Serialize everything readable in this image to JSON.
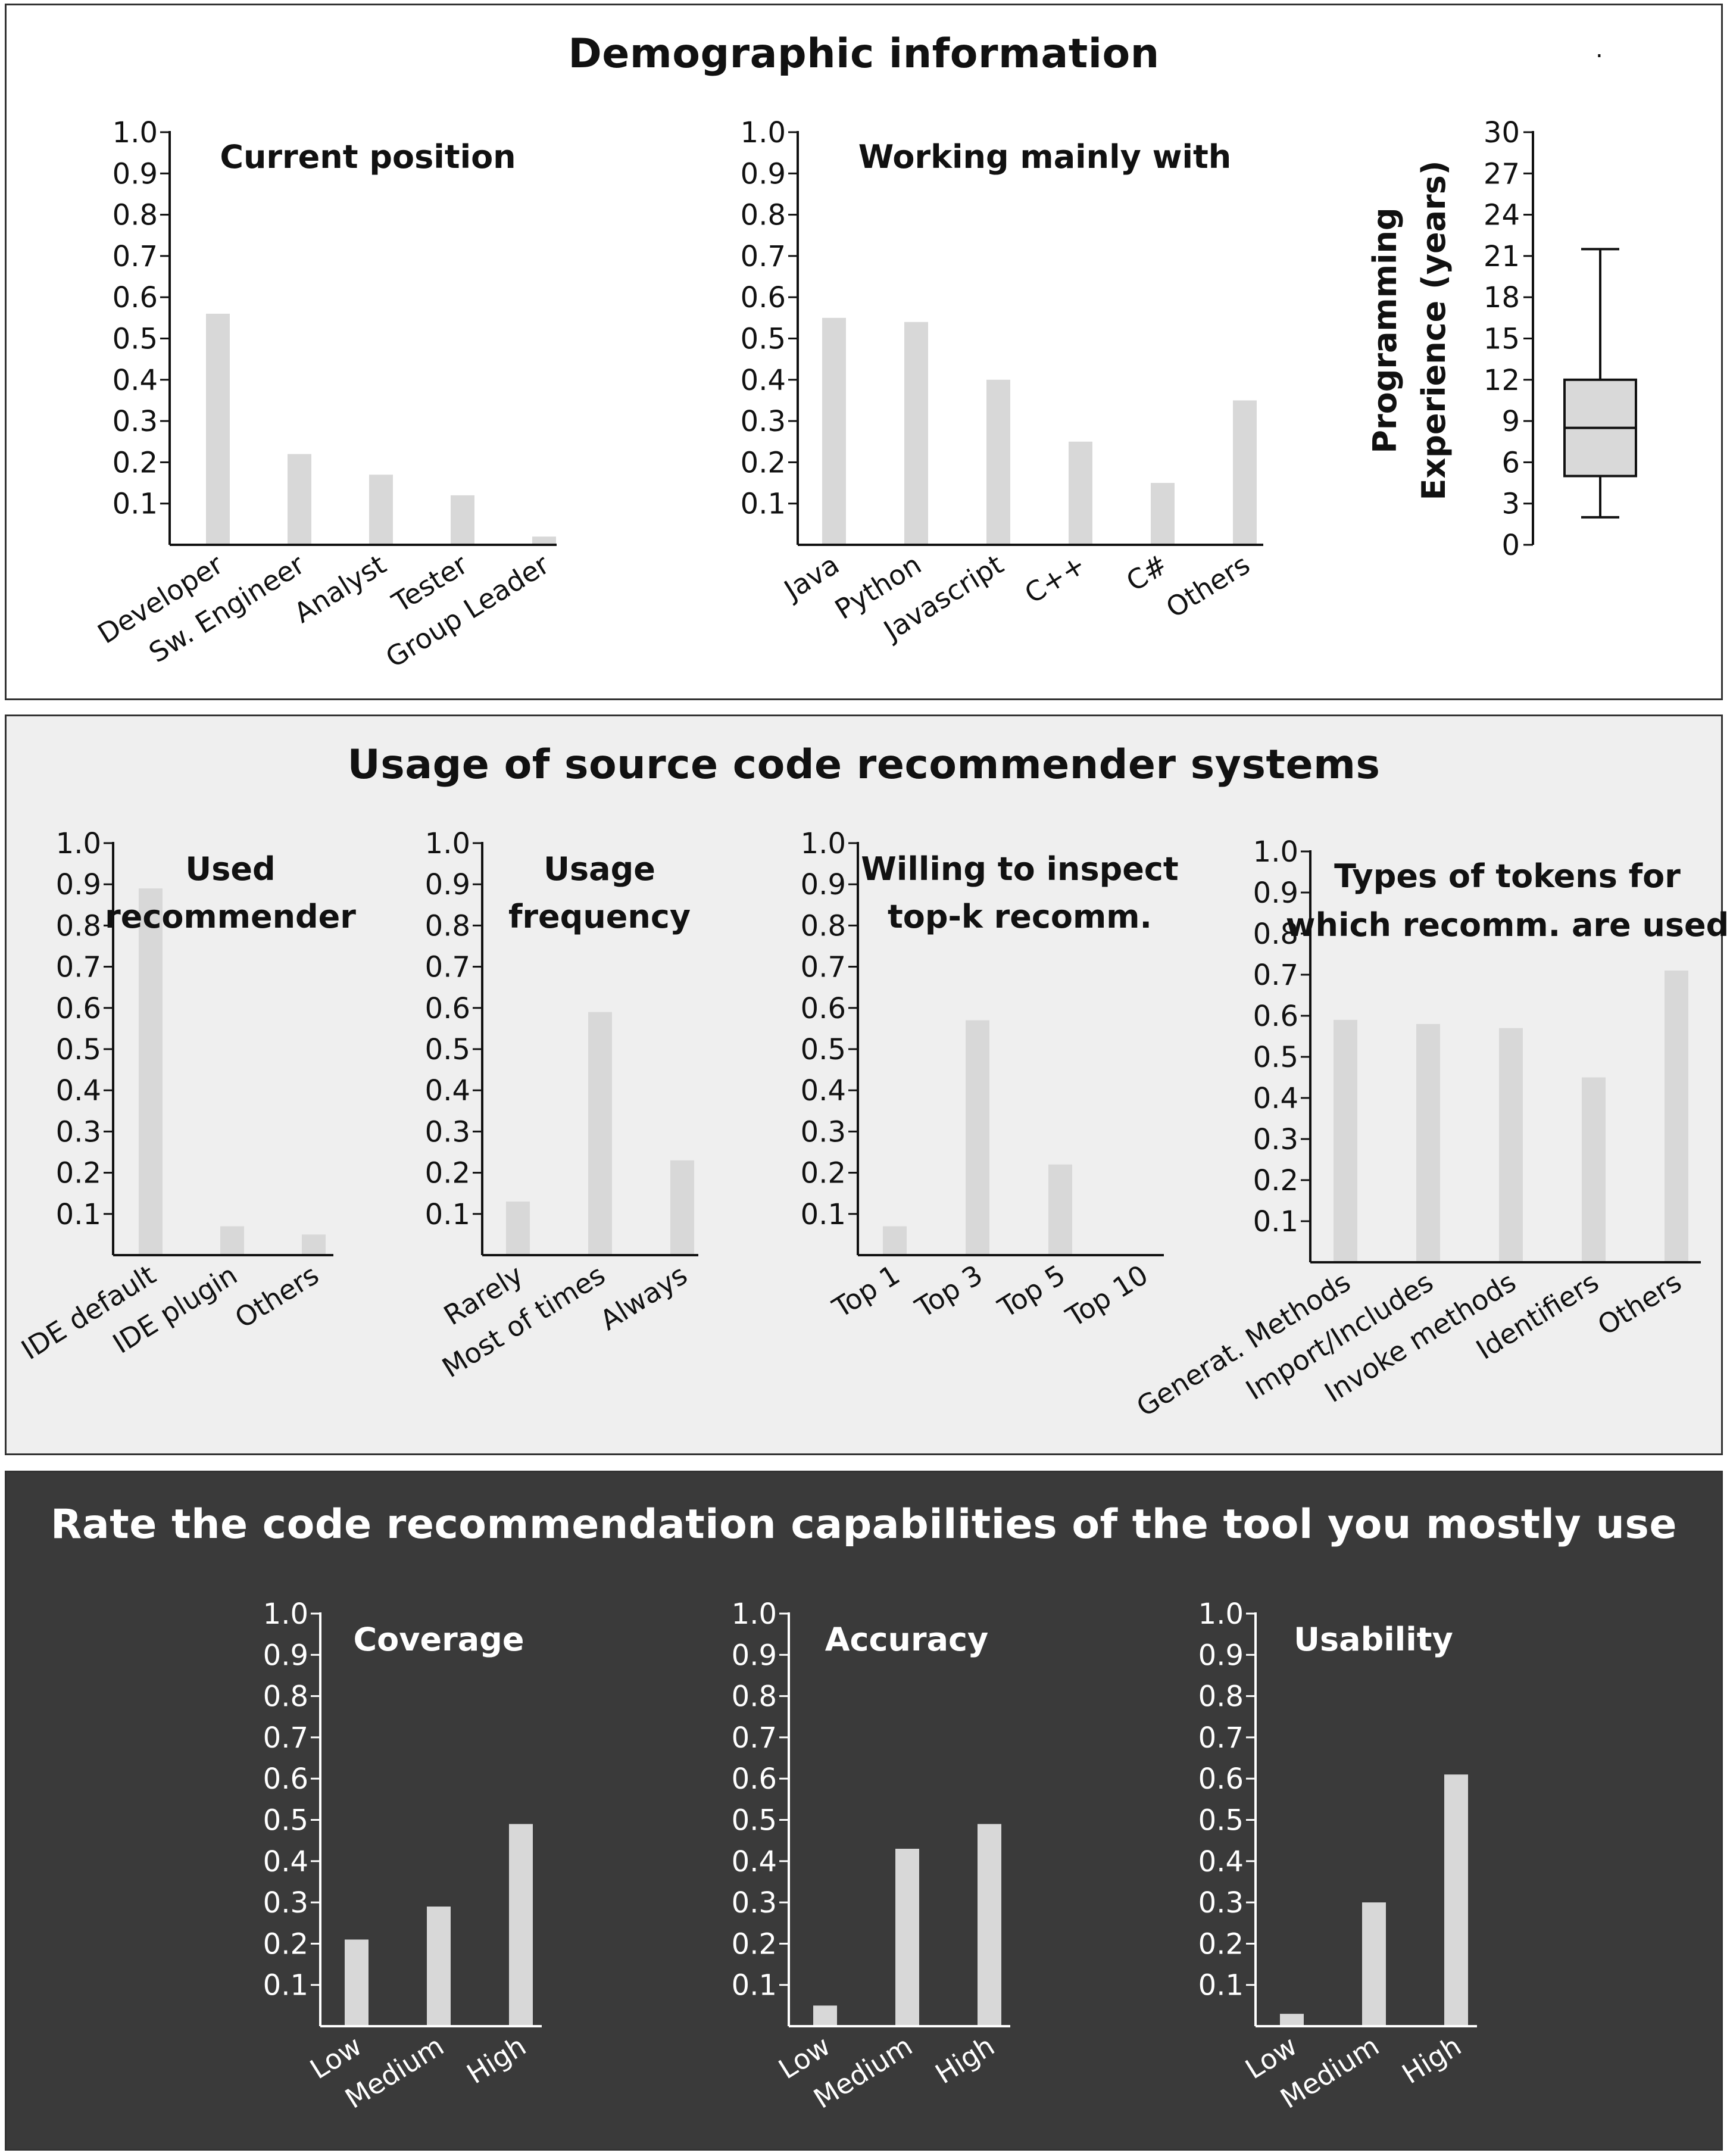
{
  "panels": {
    "demographic": {
      "title": "Demographic information",
      "mark": "."
    },
    "usage": {
      "title": "Usage of source code recommender systems"
    },
    "rating": {
      "title": "Rate the code recommendation capabilities of the tool you mostly use"
    }
  },
  "colors": {
    "bar": "#d8d8d8",
    "dark_bg": "#3a3a3a",
    "light_bg": "#efefef",
    "box_fill": "#d9d9d9"
  },
  "chart_data": [
    {
      "id": "current-position",
      "type": "bar",
      "theme": "light",
      "panel": "demographic",
      "title": [
        "Current position"
      ],
      "categories": [
        "Developer",
        "Sw. Engineer",
        "Analyst",
        "Tester",
        "Group Leader"
      ],
      "values": [
        0.56,
        0.22,
        0.17,
        0.12,
        0.02
      ],
      "ylim": [
        0,
        1.0
      ],
      "yticks": [
        "0.1",
        "0.2",
        "0.3",
        "0.4",
        "0.5",
        "0.6",
        "0.7",
        "0.8",
        "0.9",
        "1.0"
      ]
    },
    {
      "id": "working-mainly-with",
      "type": "bar",
      "theme": "light",
      "panel": "demographic",
      "title": [
        "Working mainly with"
      ],
      "categories": [
        "Java",
        "Python",
        "Javascript",
        "C++",
        "C#",
        "Others"
      ],
      "values": [
        0.55,
        0.54,
        0.4,
        0.25,
        0.15,
        0.35
      ],
      "ylim": [
        0,
        1.0
      ],
      "yticks": [
        "0.1",
        "0.2",
        "0.3",
        "0.4",
        "0.5",
        "0.6",
        "0.7",
        "0.8",
        "0.9",
        "1.0"
      ]
    },
    {
      "id": "programming-experience",
      "type": "box",
      "theme": "light",
      "panel": "demographic",
      "ylabel": [
        "Programming",
        "Experience (years)"
      ],
      "ylim": [
        0,
        30
      ],
      "yticks": [
        "3",
        "6",
        "9",
        "12",
        "15",
        "18",
        "21",
        "24",
        "27",
        "30"
      ],
      "ytick_zero": "0",
      "box": {
        "min": 2,
        "q1": 5,
        "median": 8.5,
        "q3": 12,
        "max": 21.5
      }
    },
    {
      "id": "used-recommender",
      "type": "bar",
      "theme": "light",
      "panel": "usage",
      "title": [
        "Used",
        "recommender"
      ],
      "categories": [
        "IDE default",
        "IDE plugin",
        "Others"
      ],
      "values": [
        0.89,
        0.07,
        0.05
      ],
      "ylim": [
        0,
        1.0
      ],
      "yticks": [
        "0.1",
        "0.2",
        "0.3",
        "0.4",
        "0.5",
        "0.6",
        "0.7",
        "0.8",
        "0.9",
        "1.0"
      ]
    },
    {
      "id": "usage-frequency",
      "type": "bar",
      "theme": "light",
      "panel": "usage",
      "title": [
        "Usage",
        "frequency"
      ],
      "categories": [
        "Rarely",
        "Most of times",
        "Always"
      ],
      "values": [
        0.13,
        0.59,
        0.23
      ],
      "ylim": [
        0,
        1.0
      ],
      "yticks": [
        "0.1",
        "0.2",
        "0.3",
        "0.4",
        "0.5",
        "0.6",
        "0.7",
        "0.8",
        "0.9",
        "1.0"
      ]
    },
    {
      "id": "willing-top-k",
      "type": "bar",
      "theme": "light",
      "panel": "usage",
      "title": [
        "Willing to inspect",
        "top-k recomm."
      ],
      "categories": [
        "Top 1",
        "Top 3",
        "Top 5",
        "Top 10"
      ],
      "values": [
        0.07,
        0.57,
        0.22,
        0.0
      ],
      "ylim": [
        0,
        1.0
      ],
      "yticks": [
        "0.1",
        "0.2",
        "0.3",
        "0.4",
        "0.5",
        "0.6",
        "0.7",
        "0.8",
        "0.9",
        "1.0"
      ]
    },
    {
      "id": "types-of-tokens",
      "type": "bar",
      "theme": "light",
      "panel": "usage",
      "title": [
        "Types of tokens for",
        "which recomm. are used"
      ],
      "categories": [
        "Generat. Methods",
        "Import/Includes",
        "Invoke methods",
        "Identifiers",
        "Others"
      ],
      "values": [
        0.59,
        0.58,
        0.57,
        0.45,
        0.71
      ],
      "ylim": [
        0,
        1.0
      ],
      "yticks": [
        "0.1",
        "0.2",
        "0.3",
        "0.4",
        "0.5",
        "0.6",
        "0.7",
        "0.8",
        "0.9",
        "1.0"
      ]
    },
    {
      "id": "coverage",
      "type": "bar",
      "theme": "dark",
      "panel": "rating",
      "title": [
        "Coverage"
      ],
      "categories": [
        "Low",
        "Medium",
        "High"
      ],
      "values": [
        0.21,
        0.29,
        0.49
      ],
      "ylim": [
        0,
        1.0
      ],
      "yticks": [
        "0.1",
        "0.2",
        "0.3",
        "0.4",
        "0.5",
        "0.6",
        "0.7",
        "0.8",
        "0.9",
        "1.0"
      ]
    },
    {
      "id": "accuracy",
      "type": "bar",
      "theme": "dark",
      "panel": "rating",
      "title": [
        "Accuracy"
      ],
      "categories": [
        "Low",
        "Medium",
        "High"
      ],
      "values": [
        0.05,
        0.43,
        0.49
      ],
      "ylim": [
        0,
        1.0
      ],
      "yticks": [
        "0.1",
        "0.2",
        "0.3",
        "0.4",
        "0.5",
        "0.6",
        "0.7",
        "0.8",
        "0.9",
        "1.0"
      ]
    },
    {
      "id": "usability",
      "type": "bar",
      "theme": "dark",
      "panel": "rating",
      "title": [
        "Usability"
      ],
      "categories": [
        "Low",
        "Medium",
        "High"
      ],
      "values": [
        0.03,
        0.3,
        0.61
      ],
      "ylim": [
        0,
        1.0
      ],
      "yticks": [
        "0.1",
        "0.2",
        "0.3",
        "0.4",
        "0.5",
        "0.6",
        "0.7",
        "0.8",
        "0.9",
        "1.0"
      ]
    }
  ]
}
